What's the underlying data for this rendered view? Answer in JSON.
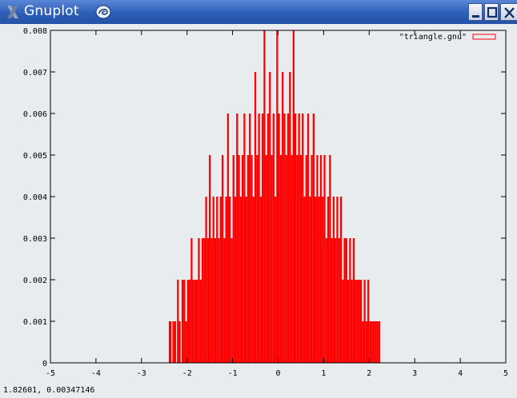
{
  "window": {
    "title": "Gnuplot",
    "controls": {
      "minimize": "_",
      "maximize": "□",
      "close": "X"
    },
    "icons": [
      "x-logo-icon",
      "swirl-icon",
      "minimize-icon",
      "maximize-icon",
      "close-icon"
    ]
  },
  "status": {
    "coordinates": "1.82601,  0.00347146"
  },
  "colors": {
    "series": "#ff0000",
    "titlebar": "#2c5fb8",
    "background": "#e9ecef"
  },
  "chart_data": {
    "type": "bar",
    "title": "",
    "xlabel": "",
    "ylabel": "",
    "xlim": [
      -5,
      5
    ],
    "ylim": [
      0,
      0.008
    ],
    "x_ticks": [
      -5,
      -4,
      -3,
      -2,
      -1,
      0,
      1,
      2,
      3,
      4,
      5
    ],
    "x_tick_labels": [
      "-5",
      "-4",
      "-3",
      "-2",
      "-1",
      "0",
      "1",
      "2",
      "3",
      "4",
      "5"
    ],
    "y_ticks": [
      0,
      0.001,
      0.002,
      0.003,
      0.004,
      0.005,
      0.006,
      0.007,
      0.008
    ],
    "y_tick_labels": [
      "0",
      "0.001",
      "0.002",
      "0.003",
      "0.004",
      "0.005",
      "0.006",
      "0.007",
      "0.008"
    ],
    "grid": false,
    "legend": {
      "position": "top-right",
      "entries": [
        "\"triangle.gnu\""
      ]
    },
    "series": [
      {
        "name": "\"triangle.gnu\"",
        "style": "impulses",
        "x": [
          -2.38,
          -2.36,
          -2.3,
          -2.26,
          -2.2,
          -2.16,
          -2.1,
          -2.06,
          -2.02,
          -1.98,
          -1.94,
          -1.9,
          -1.86,
          -1.82,
          -1.78,
          -1.74,
          -1.7,
          -1.66,
          -1.62,
          -1.58,
          -1.54,
          -1.5,
          -1.46,
          -1.42,
          -1.38,
          -1.34,
          -1.3,
          -1.26,
          -1.22,
          -1.18,
          -1.14,
          -1.1,
          -1.06,
          -1.02,
          -0.98,
          -0.94,
          -0.9,
          -0.86,
          -0.82,
          -0.78,
          -0.74,
          -0.7,
          -0.66,
          -0.62,
          -0.58,
          -0.54,
          -0.5,
          -0.46,
          -0.42,
          -0.38,
          -0.34,
          -0.3,
          -0.26,
          -0.22,
          -0.18,
          -0.14,
          -0.1,
          -0.06,
          -0.02,
          0.02,
          0.06,
          0.1,
          0.14,
          0.18,
          0.22,
          0.26,
          0.3,
          0.34,
          0.38,
          0.42,
          0.46,
          0.5,
          0.54,
          0.58,
          0.62,
          0.66,
          0.7,
          0.74,
          0.78,
          0.82,
          0.86,
          0.9,
          0.94,
          0.98,
          1.02,
          1.06,
          1.1,
          1.14,
          1.18,
          1.22,
          1.26,
          1.3,
          1.34,
          1.38,
          1.42,
          1.46,
          1.5,
          1.54,
          1.58,
          1.62,
          1.66,
          1.7,
          1.74,
          1.78,
          1.82,
          1.86,
          1.9,
          1.94,
          1.98,
          2.02,
          2.06,
          2.1,
          2.14,
          2.18,
          2.22
        ],
        "y": [
          0.001,
          0.001,
          0.001,
          0.001,
          0.002,
          0.001,
          0.002,
          0.002,
          0.001,
          0.002,
          0.002,
          0.003,
          0.002,
          0.002,
          0.002,
          0.003,
          0.002,
          0.003,
          0.003,
          0.004,
          0.003,
          0.005,
          0.003,
          0.004,
          0.003,
          0.004,
          0.003,
          0.004,
          0.005,
          0.003,
          0.004,
          0.006,
          0.004,
          0.003,
          0.005,
          0.004,
          0.006,
          0.005,
          0.004,
          0.005,
          0.006,
          0.004,
          0.005,
          0.006,
          0.005,
          0.004,
          0.007,
          0.005,
          0.006,
          0.004,
          0.006,
          0.008,
          0.005,
          0.006,
          0.007,
          0.005,
          0.006,
          0.004,
          0.008,
          0.006,
          0.005,
          0.007,
          0.006,
          0.005,
          0.006,
          0.007,
          0.005,
          0.008,
          0.006,
          0.005,
          0.006,
          0.005,
          0.006,
          0.004,
          0.005,
          0.006,
          0.004,
          0.005,
          0.006,
          0.004,
          0.005,
          0.004,
          0.005,
          0.004,
          0.005,
          0.003,
          0.004,
          0.005,
          0.003,
          0.004,
          0.003,
          0.004,
          0.003,
          0.004,
          0.002,
          0.003,
          0.003,
          0.002,
          0.003,
          0.002,
          0.003,
          0.002,
          0.002,
          0.002,
          0.002,
          0.001,
          0.002,
          0.001,
          0.002,
          0.001,
          0.001,
          0.001,
          0.001,
          0.001,
          0.001
        ]
      }
    ]
  }
}
